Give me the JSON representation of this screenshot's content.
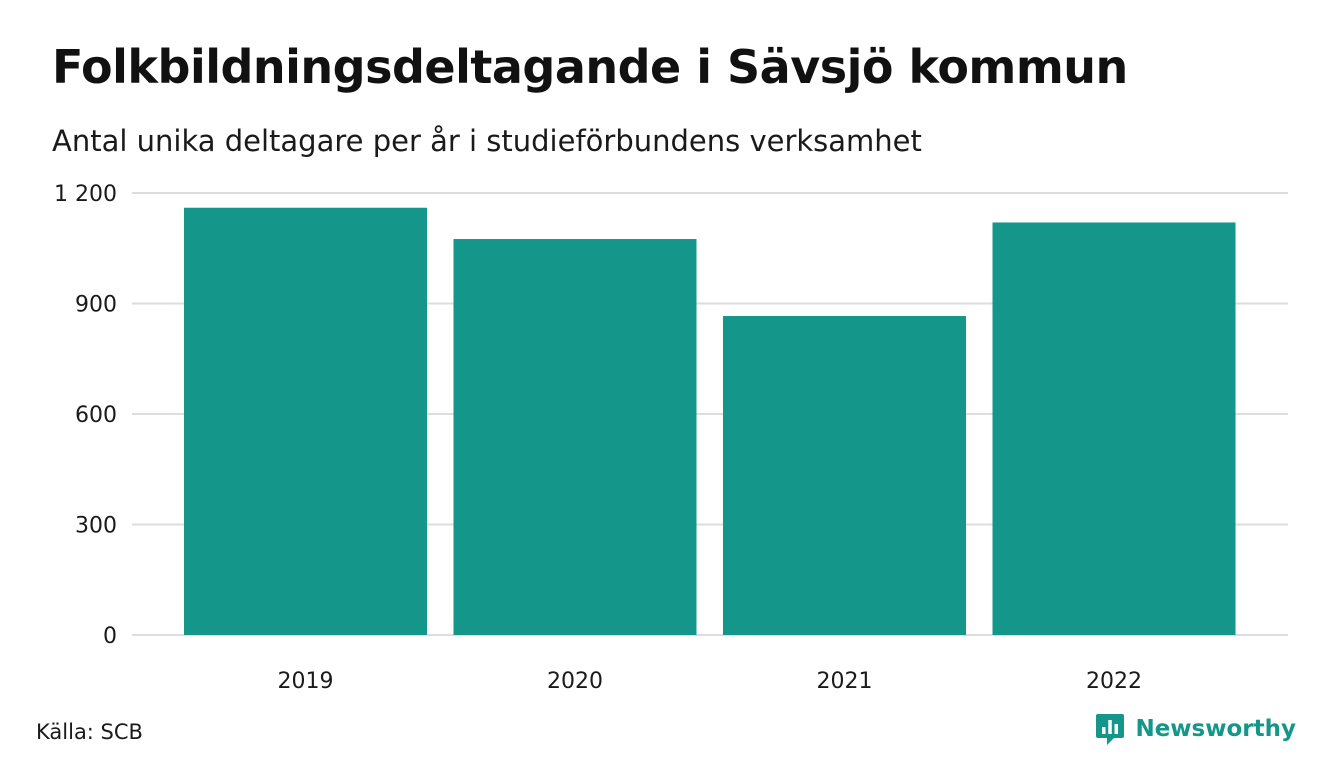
{
  "title": "Folkbildningsdeltagande i Sävsjö kommun",
  "subtitle": "Antal unika deltagare per år i studieförbundens verksamhet",
  "source": "Källa: SCB",
  "brand": {
    "name": "Newsworthy",
    "icon": "newsworthy-logo-icon",
    "color": "#14968a"
  },
  "chart_data": {
    "type": "bar",
    "categories": [
      "2019",
      "2020",
      "2021",
      "2022"
    ],
    "values": [
      1160,
      1075,
      866,
      1120
    ],
    "ylim": [
      0,
      1200
    ],
    "yticks": [
      0,
      300,
      600,
      900,
      1200
    ],
    "ytick_labels": [
      "0",
      "300",
      "600",
      "900",
      "1 200"
    ],
    "grid": true,
    "legend": "none",
    "bar_color": "#14968a",
    "grid_color": "#dddddd"
  }
}
